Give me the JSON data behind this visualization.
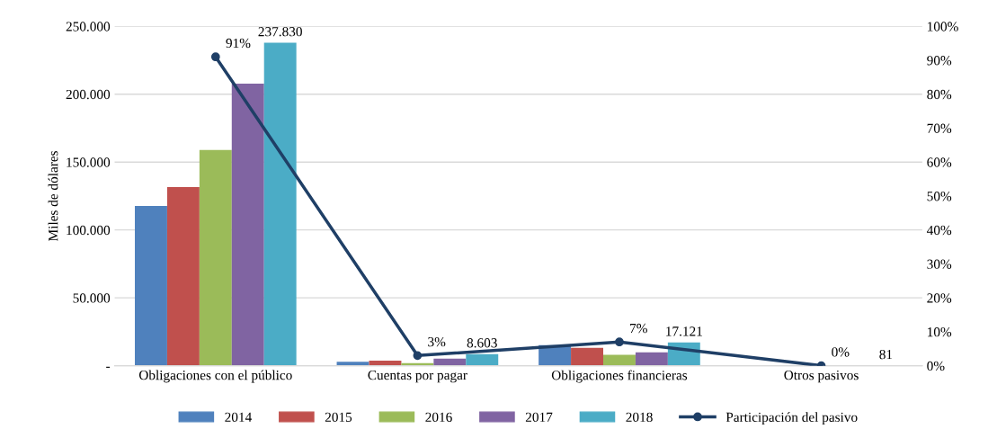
{
  "chart_data": {
    "type": "bar",
    "ylabel": "Miles de dólares",
    "categories": [
      "Obligaciones con el público",
      "Cuentas por pagar",
      "Obligaciones financieras",
      "Otros pasivos"
    ],
    "series": [
      {
        "name": "2014",
        "color": "#4f81bd",
        "values": [
          117700,
          2900,
          15100,
          0
        ]
      },
      {
        "name": "2015",
        "color": "#c0504d",
        "values": [
          131600,
          3700,
          13100,
          0
        ]
      },
      {
        "name": "2016",
        "color": "#9bbb59",
        "values": [
          158900,
          2000,
          8100,
          0
        ]
      },
      {
        "name": "2017",
        "color": "#8064a2",
        "values": [
          207700,
          5300,
          9800,
          0
        ]
      },
      {
        "name": "2018",
        "color": "#4bacc6",
        "values": [
          237830,
          8603,
          17121,
          81
        ],
        "value_labels": [
          "237.830",
          "8.603",
          "17.121",
          "81"
        ]
      },
      {
        "name": "Participación del pasivo",
        "type": "line",
        "axis": "y2",
        "color": "#1f3f66",
        "marker": "circle",
        "values": [
          91,
          3,
          7,
          0
        ],
        "value_labels": [
          "91%",
          "3%",
          "7%",
          "0%"
        ]
      }
    ],
    "ylim": [
      0,
      250000
    ],
    "yticks": [
      {
        "value": 0,
        "label": "-"
      },
      {
        "value": 50000,
        "label": "50.000"
      },
      {
        "value": 100000,
        "label": "100.000"
      },
      {
        "value": 150000,
        "label": "150.000"
      },
      {
        "value": 200000,
        "label": "200.000"
      },
      {
        "value": 250000,
        "label": "250.000"
      }
    ],
    "y2lim": [
      0,
      100
    ],
    "y2ticks": [
      {
        "value": 0,
        "label": "0%"
      },
      {
        "value": 10,
        "label": "10%"
      },
      {
        "value": 20,
        "label": "20%"
      },
      {
        "value": 30,
        "label": "30%"
      },
      {
        "value": 40,
        "label": "40%"
      },
      {
        "value": 50,
        "label": "50%"
      },
      {
        "value": 60,
        "label": "60%"
      },
      {
        "value": 70,
        "label": "70%"
      },
      {
        "value": 80,
        "label": "80%"
      },
      {
        "value": 90,
        "label": "90%"
      },
      {
        "value": 100,
        "label": "100%"
      }
    ],
    "grid": "y",
    "legend": "bottom"
  }
}
